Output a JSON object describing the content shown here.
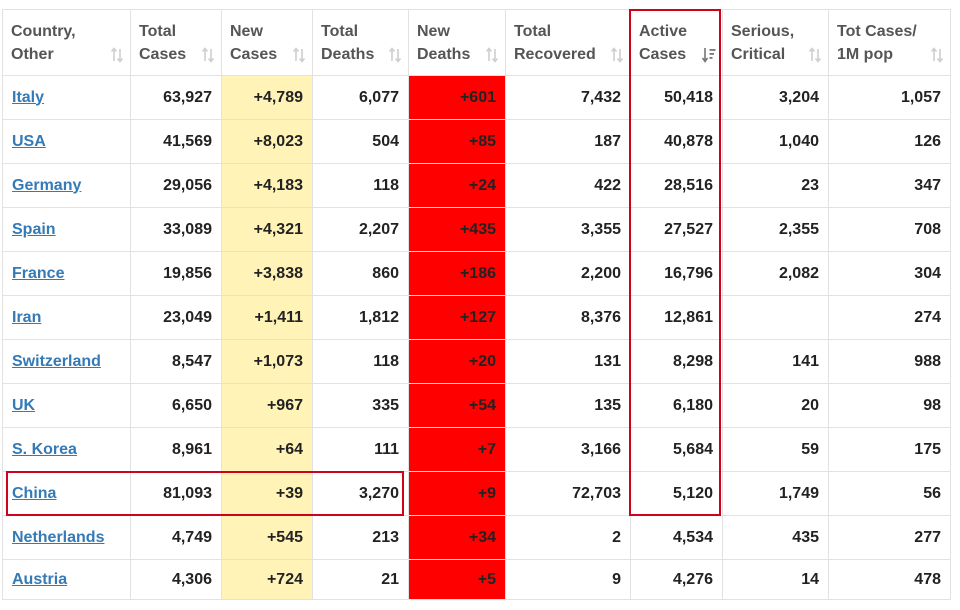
{
  "columns": [
    {
      "label": "Country,\nOther"
    },
    {
      "label": "Total\nCases"
    },
    {
      "label": "New\nCases"
    },
    {
      "label": "Total\nDeaths"
    },
    {
      "label": "New\nDeaths"
    },
    {
      "label": "Total\nRecovered"
    },
    {
      "label": "Active\nCases"
    },
    {
      "label": "Serious,\nCritical"
    },
    {
      "label": "Tot Cases/\n1M pop"
    }
  ],
  "rows": [
    {
      "country": "Italy",
      "total_cases": "63,927",
      "new_cases": "+4,789",
      "total_deaths": "6,077",
      "new_deaths": "+601",
      "total_recovered": "7,432",
      "active_cases": "50,418",
      "serious_critical": "3,204",
      "tot_cases_per_1m": "1,057"
    },
    {
      "country": "USA",
      "total_cases": "41,569",
      "new_cases": "+8,023",
      "total_deaths": "504",
      "new_deaths": "+85",
      "total_recovered": "187",
      "active_cases": "40,878",
      "serious_critical": "1,040",
      "tot_cases_per_1m": "126"
    },
    {
      "country": "Germany",
      "total_cases": "29,056",
      "new_cases": "+4,183",
      "total_deaths": "118",
      "new_deaths": "+24",
      "total_recovered": "422",
      "active_cases": "28,516",
      "serious_critical": "23",
      "tot_cases_per_1m": "347"
    },
    {
      "country": "Spain",
      "total_cases": "33,089",
      "new_cases": "+4,321",
      "total_deaths": "2,207",
      "new_deaths": "+435",
      "total_recovered": "3,355",
      "active_cases": "27,527",
      "serious_critical": "2,355",
      "tot_cases_per_1m": "708"
    },
    {
      "country": "France",
      "total_cases": "19,856",
      "new_cases": "+3,838",
      "total_deaths": "860",
      "new_deaths": "+186",
      "total_recovered": "2,200",
      "active_cases": "16,796",
      "serious_critical": "2,082",
      "tot_cases_per_1m": "304"
    },
    {
      "country": "Iran",
      "total_cases": "23,049",
      "new_cases": "+1,411",
      "total_deaths": "1,812",
      "new_deaths": "+127",
      "total_recovered": "8,376",
      "active_cases": "12,861",
      "serious_critical": "",
      "tot_cases_per_1m": "274"
    },
    {
      "country": "Switzerland",
      "total_cases": "8,547",
      "new_cases": "+1,073",
      "total_deaths": "118",
      "new_deaths": "+20",
      "total_recovered": "131",
      "active_cases": "8,298",
      "serious_critical": "141",
      "tot_cases_per_1m": "988"
    },
    {
      "country": "UK",
      "total_cases": "6,650",
      "new_cases": "+967",
      "total_deaths": "335",
      "new_deaths": "+54",
      "total_recovered": "135",
      "active_cases": "6,180",
      "serious_critical": "20",
      "tot_cases_per_1m": "98"
    },
    {
      "country": "S. Korea",
      "total_cases": "8,961",
      "new_cases": "+64",
      "total_deaths": "111",
      "new_deaths": "+7",
      "total_recovered": "3,166",
      "active_cases": "5,684",
      "serious_critical": "59",
      "tot_cases_per_1m": "175"
    },
    {
      "country": "China",
      "total_cases": "81,093",
      "new_cases": "+39",
      "total_deaths": "3,270",
      "new_deaths": "+9",
      "total_recovered": "72,703",
      "active_cases": "5,120",
      "serious_critical": "1,749",
      "tot_cases_per_1m": "56"
    },
    {
      "country": "Netherlands",
      "total_cases": "4,749",
      "new_cases": "+545",
      "total_deaths": "213",
      "new_deaths": "+34",
      "total_recovered": "2",
      "active_cases": "4,534",
      "serious_critical": "435",
      "tot_cases_per_1m": "277"
    },
    {
      "country": "Austria",
      "total_cases": "4,306",
      "new_cases": "+724",
      "total_deaths": "21",
      "new_deaths": "+5",
      "total_recovered": "9",
      "active_cases": "4,276",
      "serious_critical": "14",
      "tot_cases_per_1m": "478"
    }
  ],
  "colors": {
    "new_cases_bg": "#fff3b8",
    "new_deaths_bg": "#ff0000",
    "highlight_border": "#d0021b",
    "link": "#337ab7"
  },
  "icons": {
    "sort": "sort-arrows-icon",
    "sort_active": "sort-desc-icon"
  }
}
